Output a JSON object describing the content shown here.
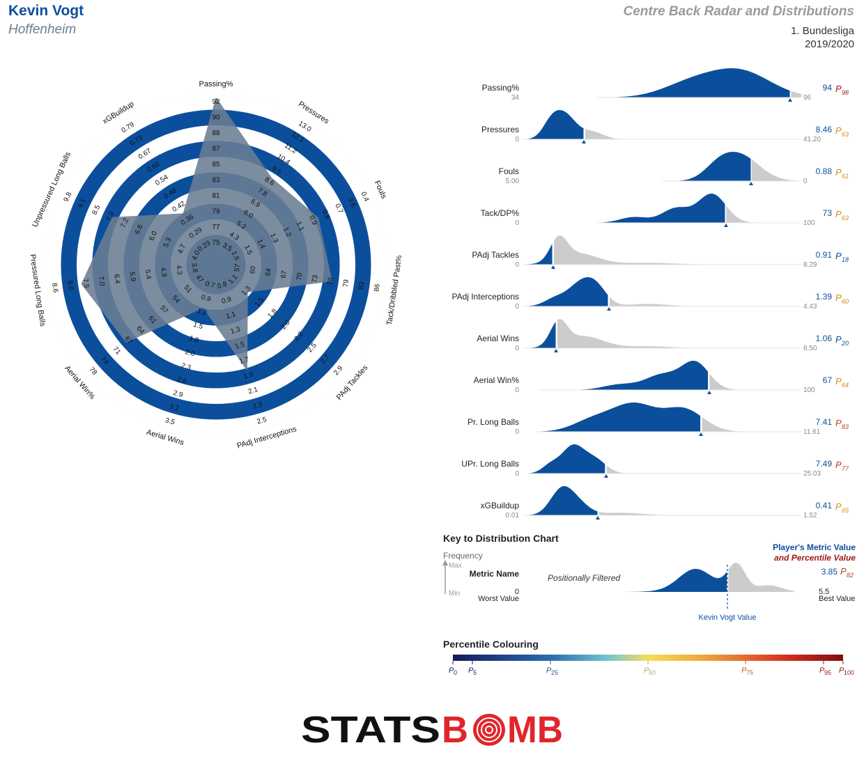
{
  "header": {
    "player_name": "Kevin Vogt",
    "team": "Hoffenheim",
    "title": "Centre Back Radar and Distributions",
    "league": "1. Bundesliga",
    "season": "2019/2020"
  },
  "colors": {
    "player_blue": "#0b4f9c",
    "distribution_grey": "#cccccc",
    "ring_grey": "#dcdcdc",
    "radar_overlay": "#6a7d93"
  },
  "chart_data": [
    {
      "type": "radar",
      "axes": [
        {
          "label": "Passing%",
          "ticks": [
            "75",
            "77",
            "79",
            "81",
            "83",
            "85",
            "87",
            "88",
            "90",
            "92"
          ],
          "value_fraction": 0.98
        },
        {
          "label": "Pressures",
          "ticks": [
            "3.5",
            "4.3",
            "5.2",
            "6.0",
            "6.9",
            "7.8",
            "8.6",
            "9.5",
            "10.4",
            "11.2",
            "12.1",
            "13.0"
          ],
          "value_fraction": 0.57
        },
        {
          "label": "Fouls",
          "ticks": [
            "1.6",
            "1.5",
            "1.4",
            "1.3",
            "1.2",
            "1.1",
            "0.9",
            "0.8",
            "0.7",
            "0.6",
            "0.4"
          ],
          "value_fraction": 0.63
        },
        {
          "label": "Tack/Dribbled Past%",
          "ticks": [
            "57",
            "60",
            "64",
            "67",
            "70",
            "73",
            "76",
            "79",
            "83",
            "86"
          ],
          "value_fraction": 0.66
        },
        {
          "label": "PAdj Tackles",
          "ticks": [
            "1.1",
            "1.3",
            "1.5",
            "1.8",
            "2.0",
            "2.2",
            "2.5",
            "2.7",
            "2.9"
          ],
          "value_fraction": 0.18
        },
        {
          "label": "PAdj Interceptions",
          "ticks": [
            "0.8",
            "0.9",
            "1.1",
            "1.3",
            "1.5",
            "1.7",
            "1.9",
            "2.1",
            "2.3",
            "2.5"
          ],
          "value_fraction": 0.62
        },
        {
          "label": "Aerial Wins",
          "ticks": [
            "0.7",
            "0.9",
            "1.2",
            "1.5",
            "1.8",
            "2.0",
            "2.3",
            "2.6",
            "2.9",
            "3.2",
            "3.5"
          ],
          "value_fraction": 0.2
        },
        {
          "label": "Aerial Win%",
          "ticks": [
            "47",
            "51",
            "54",
            "57",
            "61",
            "64",
            "67",
            "71",
            "74",
            "78"
          ],
          "value_fraction": 0.67
        },
        {
          "label": "Pressured Long Balls",
          "ticks": [
            "3.8",
            "4.3",
            "4.9",
            "5.4",
            "5.9",
            "6.4",
            "7.0",
            "7.5",
            "8.0",
            "8.6"
          ],
          "value_fraction": 0.78
        },
        {
          "label": "Unpressured Long Balls",
          "ticks": [
            "4.0",
            "4.7",
            "5.3",
            "6.0",
            "6.6",
            "7.2",
            "7.9",
            "8.5",
            "9.1",
            "9.8"
          ],
          "value_fraction": 0.64
        },
        {
          "label": "xGBuildup",
          "ticks": [
            "0.23",
            "0.29",
            "0.36",
            "0.42",
            "0.48",
            "0.54",
            "0.60",
            "0.67",
            "0.73",
            "0.79"
          ],
          "value_fraction": 0.3
        }
      ]
    },
    {
      "type": "distribution",
      "rows": [
        {
          "label": "Passing%",
          "min": "34",
          "max": "96",
          "value": "94",
          "percentile": "98",
          "pct_color": "#9c1a12",
          "marker": 0.96
        },
        {
          "label": "Pressures",
          "min": "0",
          "max": "41.20",
          "value": "8.46",
          "percentile": "63",
          "pct_color": "#d68a18",
          "marker": 0.22
        },
        {
          "label": "Fouls",
          "min": "5.00",
          "max": "0",
          "value": "0.88",
          "percentile": "61",
          "pct_color": "#d68a18",
          "marker": 0.82
        },
        {
          "label": "Tack/DP%",
          "min": "0",
          "max": "100",
          "value": "73",
          "percentile": "63",
          "pct_color": "#d68a18",
          "marker": 0.73
        },
        {
          "label": "PAdj Tackles",
          "min": "0",
          "max": "8.29",
          "value": "0.91",
          "percentile": "18",
          "pct_color": "#0b4f9c",
          "marker": 0.11
        },
        {
          "label": "PAdj Interceptions",
          "min": "0",
          "max": "4.43",
          "value": "1.39",
          "percentile": "60",
          "pct_color": "#d68a18",
          "marker": 0.31
        },
        {
          "label": "Aerial Wins",
          "min": "0",
          "max": "8.50",
          "value": "1.06",
          "percentile": "20",
          "pct_color": "#0b4f9c",
          "marker": 0.12
        },
        {
          "label": "Aerial Win%",
          "min": "0",
          "max": "100",
          "value": "67",
          "percentile": "64",
          "pct_color": "#d68a18",
          "marker": 0.67
        },
        {
          "label": "Pr. Long Balls",
          "min": "0",
          "max": "11.61",
          "value": "7.41",
          "percentile": "83",
          "pct_color": "#b5401a",
          "marker": 0.64
        },
        {
          "label": "UPr. Long Balls",
          "min": "0",
          "max": "25.03",
          "value": "7.49",
          "percentile": "77",
          "pct_color": "#b5401a",
          "marker": 0.3
        },
        {
          "label": "xGBuildup",
          "min": "0.01",
          "max": "1.52",
          "value": "0.41",
          "percentile": "65",
          "pct_color": "#d68a18",
          "marker": 0.27
        }
      ]
    }
  ],
  "key": {
    "title": "Key to Distribution Chart",
    "frequency": "Frequency",
    "max": "Max",
    "min": "Min",
    "metric_name": "Metric Name",
    "positionally_filtered": "Positionally Filtered",
    "worst_value_num": "0",
    "worst_value": "Worst Value",
    "best_value_num": "5.5",
    "best_value": "Best Value",
    "player_metric_value": "Player's Metric Value",
    "and_percentile_value": "and Percentile Value",
    "example_value": "3.85",
    "example_percentile": "82",
    "player_value_label": "Kevin Vogt Value"
  },
  "percentile_colouring": {
    "title": "Percentile Colouring",
    "p_letter": "P",
    "ticks": [
      {
        "label": "0",
        "frac": 0.0,
        "color": "#1a2a6c"
      },
      {
        "label": "5",
        "frac": 0.05,
        "color": "#1a2a6c"
      },
      {
        "label": "25",
        "frac": 0.25,
        "color": "#2b5c9a"
      },
      {
        "label": "50",
        "frac": 0.5,
        "color": "#a6b36a"
      },
      {
        "label": "75",
        "frac": 0.75,
        "color": "#c0672a"
      },
      {
        "label": "95",
        "frac": 0.95,
        "color": "#8f1d14"
      },
      {
        "label": "100",
        "frac": 1.0,
        "color": "#8f1d14"
      }
    ]
  },
  "logo": {
    "text_black": "STATS",
    "text_red_b": "B",
    "text_red_mb": "MB"
  }
}
